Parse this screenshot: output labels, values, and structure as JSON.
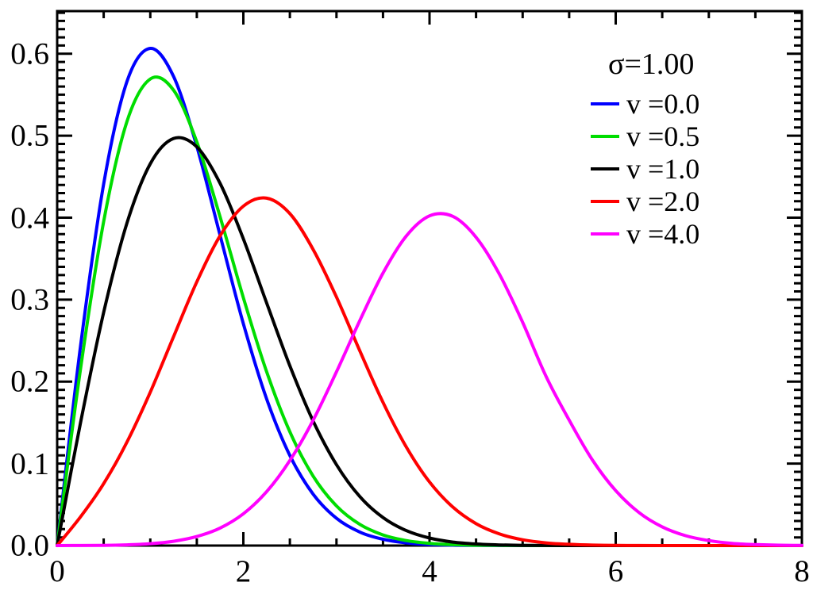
{
  "figure": {
    "background": "#ffffff",
    "axis_color": "#000000",
    "text_color": "#000000"
  },
  "legend": {
    "title": "σ=1.00",
    "entries": [
      {
        "label": "v =0.0",
        "color": "#0000ff"
      },
      {
        "label": "v =0.5",
        "color": "#00dd00"
      },
      {
        "label": "v =1.0",
        "color": "#000000"
      },
      {
        "label": "v =2.0",
        "color": "#ff0000"
      },
      {
        "label": "v =4.0",
        "color": "#ff00ff"
      }
    ]
  },
  "chart_data": {
    "type": "line",
    "title": "",
    "xlabel": "",
    "ylabel": "",
    "xlim": [
      0,
      8
    ],
    "ylim": [
      0,
      0.652
    ],
    "grid": false,
    "legend_position": "upper right",
    "sigma_label": "σ=1.00",
    "x_major_ticks": [
      0,
      2,
      4,
      6,
      8
    ],
    "x_tick_labels": [
      "0",
      "2",
      "4",
      "6",
      "8"
    ],
    "x_minor_step": 0.5,
    "y_major_ticks": [
      0,
      0.1,
      0.2,
      0.3,
      0.4,
      0.5,
      0.6
    ],
    "y_tick_labels": [
      "0.0",
      "0.1",
      "0.2",
      "0.3",
      "0.4",
      "0.5",
      "0.6"
    ],
    "y_minor_step": 0.01,
    "x": [
      0,
      0.25,
      0.5,
      0.75,
      1,
      1.25,
      1.5,
      1.75,
      2,
      2.25,
      2.5,
      2.75,
      3,
      3.25,
      3.5,
      3.75,
      4,
      4.25,
      4.5,
      4.75,
      5,
      5.25,
      5.5,
      5.75,
      6,
      6.25,
      6.5,
      6.75,
      7,
      7.25,
      7.5,
      7.75,
      8
    ],
    "series": [
      {
        "name": "v =0.0",
        "nu": 0.0,
        "color": "#0000ff",
        "values": [
          0,
          0.2423,
          0.4413,
          0.5661,
          0.6065,
          0.5723,
          0.487,
          0.3785,
          0.2707,
          0.179,
          0.1098,
          0.0627,
          0.0333,
          0.0165,
          0.0077,
          0.0033,
          0.0013,
          0.0005,
          0.0002,
          0.0001,
          0,
          0,
          0,
          0,
          0,
          0,
          0,
          0,
          0,
          0,
          0,
          0,
          0
        ]
      },
      {
        "name": "v =0.5",
        "nu": 0.5,
        "color": "#00dd00",
        "values": [
          0,
          0.2147,
          0.3955,
          0.5173,
          0.5692,
          0.5556,
          0.4924,
          0.4011,
          0.3024,
          0.2121,
          0.1387,
          0.0847,
          0.0484,
          0.0259,
          0.013,
          0.0061,
          0.0027,
          0.0011,
          0.0004,
          0.0002,
          0.0001,
          0,
          0,
          0,
          0,
          0,
          0,
          0,
          0,
          0,
          0,
          0,
          0
        ]
      },
      {
        "name": "v =1.0",
        "nu": 1.0,
        "color": "#000000",
        "values": [
          0,
          0.1493,
          0.2846,
          0.3934,
          0.4658,
          0.4966,
          0.4864,
          0.4419,
          0.3742,
          0.2961,
          0.2192,
          0.1519,
          0.0987,
          0.0599,
          0.0342,
          0.0183,
          0.0092,
          0.0043,
          0.0019,
          0.0008,
          0.0003,
          0.0001,
          0,
          0,
          0,
          0,
          0,
          0,
          0,
          0,
          0,
          0,
          0
        ]
      },
      {
        "name": "v =2.0",
        "nu": 2.0,
        "color": "#ff0000",
        "values": [
          0,
          0.0349,
          0.0756,
          0.1262,
          0.1871,
          0.2548,
          0.3217,
          0.3779,
          0.414,
          0.4238,
          0.4049,
          0.3612,
          0.3032,
          0.2378,
          0.1747,
          0.1203,
          0.0776,
          0.047,
          0.0267,
          0.0142,
          0.0071,
          0.0033,
          0.0015,
          0.0006,
          0.0002,
          0.0001,
          0,
          0,
          0,
          0,
          0,
          0,
          0
        ]
      },
      {
        "name": "v =4.0",
        "nu": 4.0,
        "color": "#ff00ff",
        "values": [
          0,
          0.0001,
          0.0003,
          0.0009,
          0.0023,
          0.0052,
          0.011,
          0.0214,
          0.0388,
          0.0657,
          0.1038,
          0.1529,
          0.2119,
          0.2742,
          0.3324,
          0.3776,
          0.4022,
          0.4016,
          0.3761,
          0.3312,
          0.2723,
          0.2068,
          0.153,
          0.1044,
          0.067,
          0.0403,
          0.0228,
          0.0121,
          0.0061,
          0.0027,
          0.0012,
          0.0005,
          0.0002
        ]
      }
    ]
  }
}
